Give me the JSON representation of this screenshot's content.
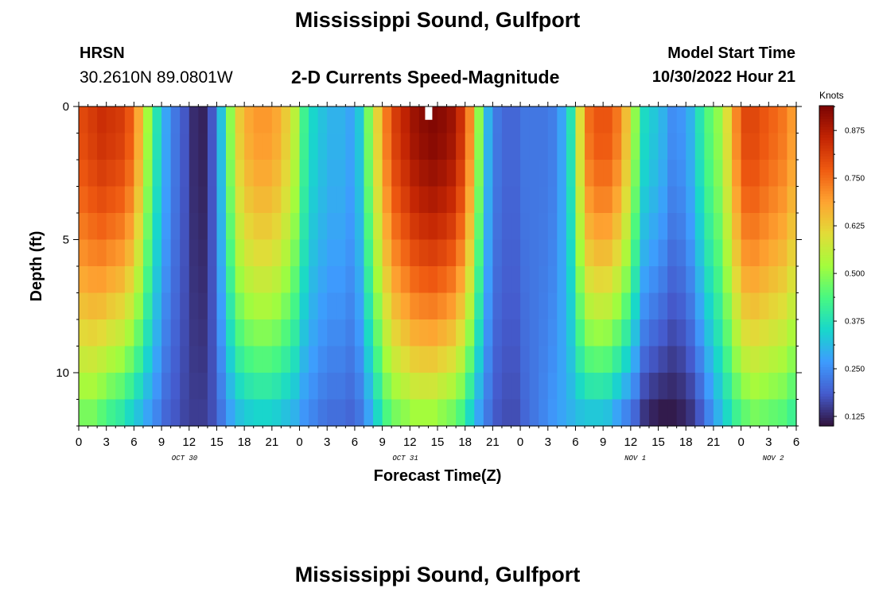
{
  "header": {
    "title": "Mississippi Sound, Gulfport",
    "station": "HRSN",
    "coords": "30.2610N  89.0801W",
    "product": "2-D Currents Speed-Magnitude",
    "model_start_label": "Model Start Time",
    "model_start_value": "10/30/2022 Hour 21"
  },
  "footer": {
    "title": "Mississippi Sound, Gulfport"
  },
  "chart_data": {
    "type": "heatmap",
    "title": "2-D Currents Speed-Magnitude",
    "xlabel": "Forecast Time(Z)",
    "ylabel": "Depth (ft)",
    "x_range_hours": [
      0,
      78
    ],
    "y_range_ft": [
      0,
      12
    ],
    "y_inverted": true,
    "x_tick_labels": [
      "0",
      "3",
      "6",
      "9",
      "12",
      "15",
      "18",
      "21",
      "0",
      "3",
      "6",
      "9",
      "12",
      "15",
      "18",
      "21",
      "0",
      "3",
      "6",
      "9",
      "12",
      "15",
      "18",
      "21",
      "0",
      "3",
      "6"
    ],
    "y_tick_labels": [
      "0",
      "5",
      "10"
    ],
    "y_tick_values": [
      0,
      5,
      10
    ],
    "date_labels": [
      {
        "label": "OCT 30",
        "hour": 11.5
      },
      {
        "label": "OCT 31",
        "hour": 35.5
      },
      {
        "label": "NOV 1",
        "hour": 60.5
      },
      {
        "label": "NOV 2",
        "hour": 75.5
      }
    ],
    "colorbar": {
      "title": "Knots",
      "ticks": [
        0.125,
        0.25,
        0.375,
        0.5,
        0.625,
        0.75,
        0.875
      ],
      "tick_labels": [
        "0.125",
        "0.250",
        "0.375",
        "0.500",
        "0.625",
        "0.750",
        "0.875"
      ],
      "min": 0.1,
      "max": 0.94,
      "colormap": "turbo"
    },
    "missing_cell": {
      "hour": 38,
      "depth_ft": 0.25
    },
    "grid": {
      "hours": 78,
      "depth_levels": 12
    },
    "surface_speed_knots": [
      0.8,
      0.82,
      0.84,
      0.83,
      0.82,
      0.78,
      0.68,
      0.52,
      0.38,
      0.28,
      0.22,
      0.18,
      0.13,
      0.12,
      0.18,
      0.32,
      0.5,
      0.63,
      0.68,
      0.7,
      0.7,
      0.68,
      0.63,
      0.55,
      0.42,
      0.35,
      0.32,
      0.3,
      0.3,
      0.28,
      0.33,
      0.48,
      0.62,
      0.74,
      0.82,
      0.86,
      0.9,
      0.92,
      0.93,
      0.92,
      0.9,
      0.84,
      0.72,
      0.5,
      0.3,
      0.22,
      0.2,
      0.2,
      0.22,
      0.22,
      0.22,
      0.23,
      0.28,
      0.38,
      0.6,
      0.75,
      0.78,
      0.78,
      0.74,
      0.65,
      0.5,
      0.36,
      0.33,
      0.3,
      0.25,
      0.26,
      0.3,
      0.38,
      0.45,
      0.5,
      0.6,
      0.72,
      0.8,
      0.8,
      0.78,
      0.76,
      0.74,
      0.7
    ],
    "bottom_speed_knots": [
      0.48,
      0.48,
      0.45,
      0.42,
      0.4,
      0.36,
      0.32,
      0.28,
      0.24,
      0.2,
      0.18,
      0.16,
      0.15,
      0.15,
      0.17,
      0.22,
      0.28,
      0.32,
      0.34,
      0.35,
      0.35,
      0.34,
      0.32,
      0.3,
      0.26,
      0.24,
      0.22,
      0.21,
      0.21,
      0.2,
      0.22,
      0.28,
      0.36,
      0.44,
      0.48,
      0.5,
      0.52,
      0.52,
      0.52,
      0.5,
      0.48,
      0.44,
      0.36,
      0.28,
      0.22,
      0.18,
      0.17,
      0.17,
      0.2,
      0.22,
      0.24,
      0.26,
      0.28,
      0.3,
      0.32,
      0.33,
      0.33,
      0.32,
      0.28,
      0.24,
      0.2,
      0.14,
      0.12,
      0.11,
      0.11,
      0.12,
      0.14,
      0.18,
      0.24,
      0.3,
      0.36,
      0.42,
      0.46,
      0.48,
      0.47,
      0.46,
      0.45,
      0.42
    ]
  }
}
